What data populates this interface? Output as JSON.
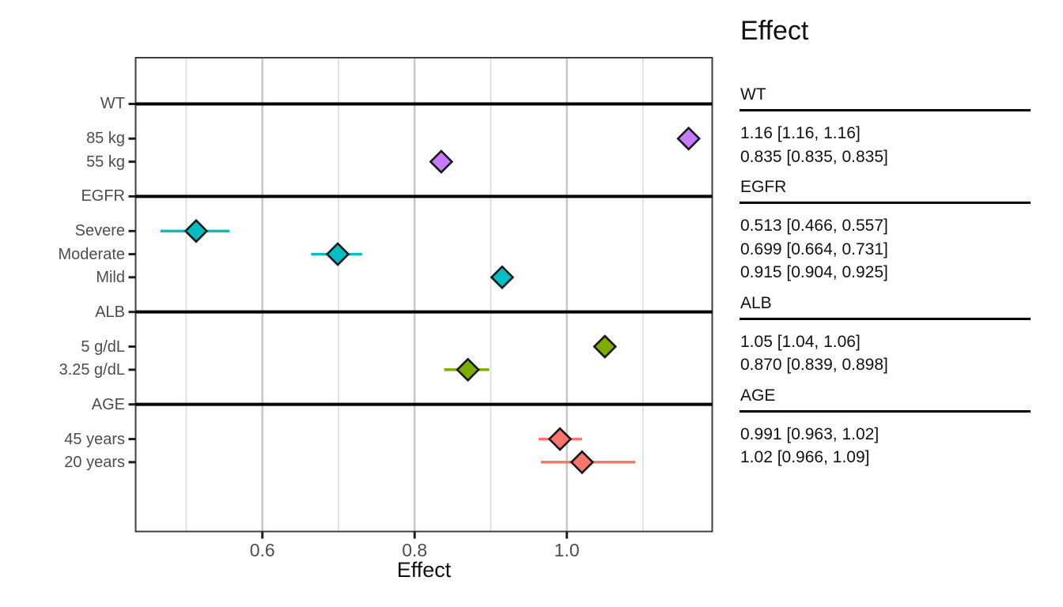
{
  "page_title": "Effect forest plot",
  "chart_data": {
    "type": "forest",
    "xlabel": "Effect",
    "panel_title": "Effect",
    "x_axis": {
      "xlim": [
        0.4335,
        1.191
      ],
      "major_ticks": [
        {
          "value": 0.6,
          "label": "0.6"
        },
        {
          "value": 0.8,
          "label": "0.8"
        },
        {
          "value": 1.0,
          "label": "1.0"
        }
      ],
      "minor_gridlines": [
        0.5,
        0.7,
        0.9,
        1.1
      ],
      "grid": "vertical-only"
    },
    "legend_position": "right-text-panel",
    "groups": [
      {
        "name": "WT",
        "color": "#C77CFF",
        "items": [
          {
            "label": "85 kg",
            "est": 1.16,
            "lo": 1.16,
            "hi": 1.16,
            "text": "1.16 [1.16, 1.16]"
          },
          {
            "label": "55 kg",
            "est": 0.835,
            "lo": 0.835,
            "hi": 0.835,
            "text": "0.835 [0.835, 0.835]"
          }
        ]
      },
      {
        "name": "EGFR",
        "color": "#00BFC4",
        "items": [
          {
            "label": "Severe",
            "est": 0.513,
            "lo": 0.466,
            "hi": 0.557,
            "text": "0.513 [0.466, 0.557]"
          },
          {
            "label": "Moderate",
            "est": 0.699,
            "lo": 0.664,
            "hi": 0.731,
            "text": "0.699 [0.664, 0.731]"
          },
          {
            "label": "Mild",
            "est": 0.915,
            "lo": 0.904,
            "hi": 0.925,
            "text": "0.915 [0.904, 0.925]"
          }
        ]
      },
      {
        "name": "ALB",
        "color": "#7CAE00",
        "items": [
          {
            "label": "5 g/dL",
            "est": 1.05,
            "lo": 1.04,
            "hi": 1.06,
            "text": "1.05 [1.04, 1.06]"
          },
          {
            "label": "3.25 g/dL",
            "est": 0.87,
            "lo": 0.839,
            "hi": 0.898,
            "text": "0.870 [0.839, 0.898]"
          }
        ]
      },
      {
        "name": "AGE",
        "color": "#F8766D",
        "items": [
          {
            "label": "45 years",
            "est": 0.991,
            "lo": 0.963,
            "hi": 1.02,
            "text": "0.991 [0.963, 1.02]"
          },
          {
            "label": "20 years",
            "est": 1.02,
            "lo": 0.966,
            "hi": 1.09,
            "text": "1.02 [0.966, 1.09]"
          }
        ]
      }
    ],
    "style_colors": {
      "marker_outline": "#1a1a1a",
      "header_rule": "#000000",
      "panel_border": "#3f3f3f",
      "grid_major": "#c9c9c9",
      "grid_minor": "#dcdcdc",
      "axis_text": "#4d4d4d",
      "tick_mark": "#1f1f1f"
    }
  }
}
